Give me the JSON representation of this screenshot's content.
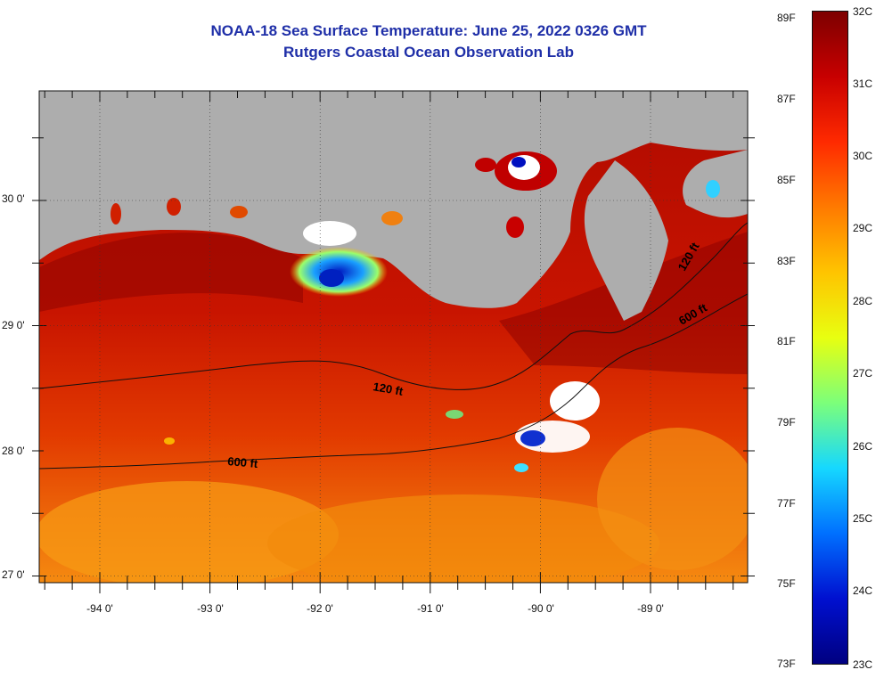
{
  "title": {
    "line1": "NOAA-18 Sea Surface Temperature:  June 25, 2022 0326 GMT",
    "line2": "Rutgers Coastal Ocean Observation Lab"
  },
  "map": {
    "land_color": "#adadad",
    "latitude_labels": [
      "30 0'",
      "29 0'",
      "28 0'",
      "27 0'"
    ],
    "longitude_labels": [
      "-94 0'",
      "-93 0'",
      "-92 0'",
      "-91 0'",
      "-90 0'",
      "-89 0'"
    ],
    "contours": [
      {
        "label": "120 ft",
        "name": "120-ft-isobath"
      },
      {
        "label": "600 ft",
        "name": "600-ft-isobath"
      },
      {
        "label": "120 ft",
        "name": "120-ft-isobath-east"
      },
      {
        "label": "600 ft",
        "name": "600-ft-isobath-east"
      }
    ]
  },
  "colorbar": {
    "fahrenheit_labels": [
      "89F",
      "87F",
      "85F",
      "83F",
      "81F",
      "79F",
      "77F",
      "75F",
      "73F"
    ],
    "celsius_labels": [
      "32C",
      "31C",
      "30C",
      "29C",
      "28C",
      "27C",
      "26C",
      "25C",
      "24C",
      "23C"
    ],
    "colors": [
      "#7d0000",
      "#c80000",
      "#ff2a00",
      "#ff7a00",
      "#ffc400",
      "#e8ff10",
      "#7cff7a",
      "#16d8ff",
      "#0070ff",
      "#0010d0",
      "#000080"
    ]
  }
}
